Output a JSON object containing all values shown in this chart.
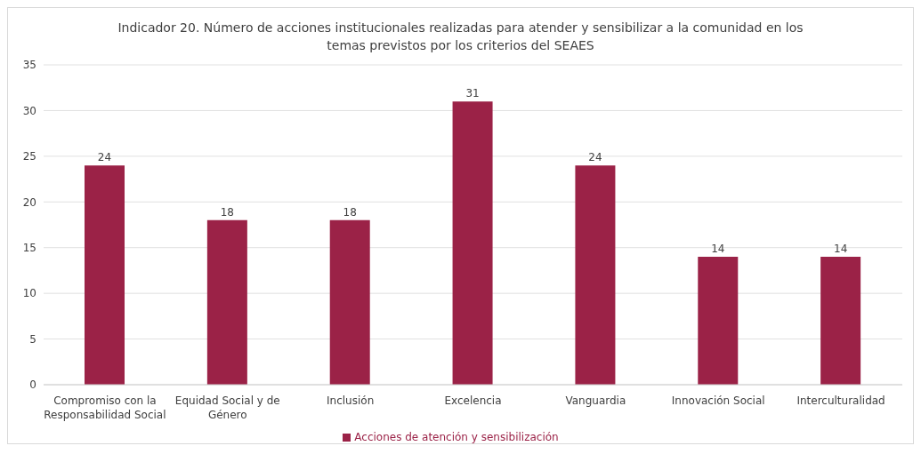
{
  "chart_data": {
    "type": "bar",
    "title": "Indicador 20. Número de acciones institucionales realizadas para atender y sensibilizar a la comunidad en los temas previstos por los criterios del SEAES",
    "categories": [
      "Compromiso con la Responsabilidad Social",
      "Equidad Social y de Género",
      "Inclusión",
      "Excelencia",
      "Vanguardia",
      "Innovación Social",
      "Interculturalidad"
    ],
    "series": [
      {
        "name": "Acciones de atención y sensibilización",
        "color": "#9b2247",
        "values": [
          24,
          18,
          18,
          31,
          24,
          14,
          14
        ]
      }
    ],
    "ylim": [
      0,
      35
    ],
    "yticks": [
      0,
      5,
      10,
      15,
      20,
      25,
      30,
      35
    ],
    "grid": "y",
    "legend": "bottom",
    "data_labels": true
  }
}
